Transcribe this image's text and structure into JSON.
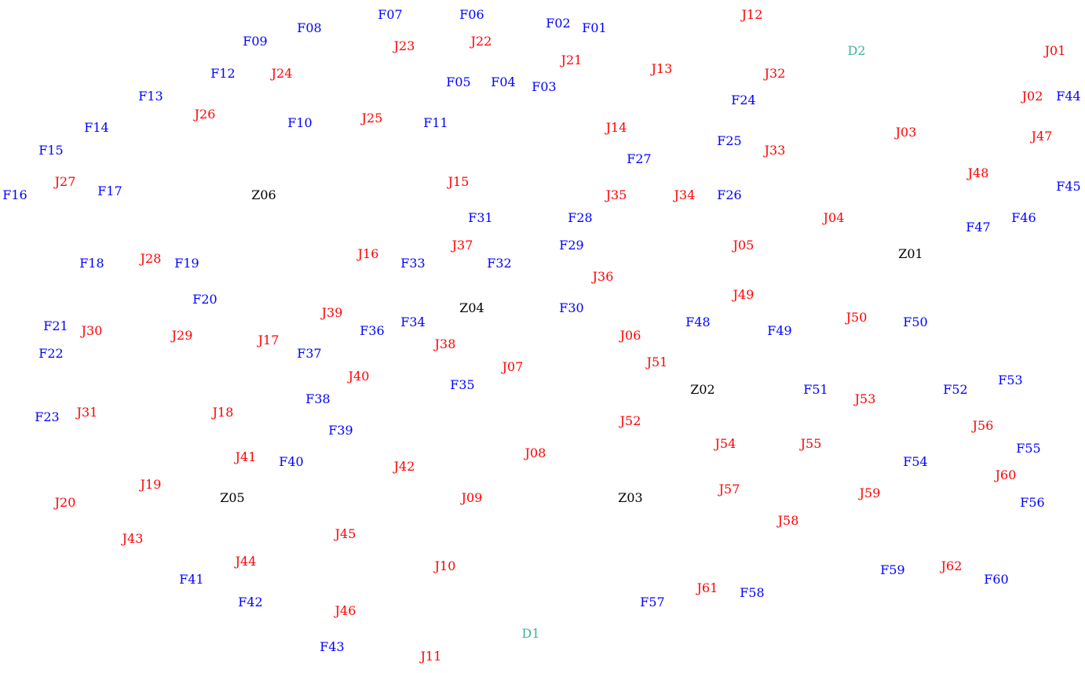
{
  "diagram": {
    "colors": {
      "F": "#0000ff",
      "J": "#ff0000",
      "Z": "#000000",
      "D": "#3cb39a"
    },
    "nodes": [
      {
        "id": "F01",
        "type": "F"
      },
      {
        "id": "F02",
        "type": "F"
      },
      {
        "id": "F03",
        "type": "F"
      },
      {
        "id": "F04",
        "type": "F"
      },
      {
        "id": "F05",
        "type": "F"
      },
      {
        "id": "F06",
        "type": "F"
      },
      {
        "id": "F07",
        "type": "F"
      },
      {
        "id": "F08",
        "type": "F"
      },
      {
        "id": "F09",
        "type": "F"
      },
      {
        "id": "F10",
        "type": "F"
      },
      {
        "id": "F11",
        "type": "F"
      },
      {
        "id": "F12",
        "type": "F"
      },
      {
        "id": "F13",
        "type": "F"
      },
      {
        "id": "F14",
        "type": "F"
      },
      {
        "id": "F15",
        "type": "F"
      },
      {
        "id": "F16",
        "type": "F"
      },
      {
        "id": "F17",
        "type": "F"
      },
      {
        "id": "F18",
        "type": "F"
      },
      {
        "id": "F19",
        "type": "F"
      },
      {
        "id": "F20",
        "type": "F"
      },
      {
        "id": "F21",
        "type": "F"
      },
      {
        "id": "F22",
        "type": "F"
      },
      {
        "id": "F23",
        "type": "F"
      },
      {
        "id": "F24",
        "type": "F"
      },
      {
        "id": "F25",
        "type": "F"
      },
      {
        "id": "F26",
        "type": "F"
      },
      {
        "id": "F27",
        "type": "F"
      },
      {
        "id": "F28",
        "type": "F"
      },
      {
        "id": "F29",
        "type": "F"
      },
      {
        "id": "F30",
        "type": "F"
      },
      {
        "id": "F31",
        "type": "F"
      },
      {
        "id": "F32",
        "type": "F"
      },
      {
        "id": "F33",
        "type": "F"
      },
      {
        "id": "F34",
        "type": "F"
      },
      {
        "id": "F35",
        "type": "F"
      },
      {
        "id": "F36",
        "type": "F"
      },
      {
        "id": "F37",
        "type": "F"
      },
      {
        "id": "F38",
        "type": "F"
      },
      {
        "id": "F39",
        "type": "F"
      },
      {
        "id": "F40",
        "type": "F"
      },
      {
        "id": "F41",
        "type": "F"
      },
      {
        "id": "F42",
        "type": "F"
      },
      {
        "id": "F43",
        "type": "F"
      },
      {
        "id": "F44",
        "type": "F"
      },
      {
        "id": "F45",
        "type": "F"
      },
      {
        "id": "F46",
        "type": "F"
      },
      {
        "id": "F47",
        "type": "F"
      },
      {
        "id": "F48",
        "type": "F"
      },
      {
        "id": "F49",
        "type": "F"
      },
      {
        "id": "F50",
        "type": "F"
      },
      {
        "id": "F51",
        "type": "F"
      },
      {
        "id": "F52",
        "type": "F"
      },
      {
        "id": "F53",
        "type": "F"
      },
      {
        "id": "F54",
        "type": "F"
      },
      {
        "id": "F55",
        "type": "F"
      },
      {
        "id": "F56",
        "type": "F"
      },
      {
        "id": "F57",
        "type": "F"
      },
      {
        "id": "F58",
        "type": "F"
      },
      {
        "id": "F59",
        "type": "F"
      },
      {
        "id": "F60",
        "type": "F"
      },
      {
        "id": "J01",
        "type": "J"
      },
      {
        "id": "J02",
        "type": "J"
      },
      {
        "id": "J03",
        "type": "J"
      },
      {
        "id": "J04",
        "type": "J"
      },
      {
        "id": "J05",
        "type": "J"
      },
      {
        "id": "J06",
        "type": "J"
      },
      {
        "id": "J07",
        "type": "J"
      },
      {
        "id": "J08",
        "type": "J"
      },
      {
        "id": "J09",
        "type": "J"
      },
      {
        "id": "J10",
        "type": "J"
      },
      {
        "id": "J11",
        "type": "J"
      },
      {
        "id": "J12",
        "type": "J"
      },
      {
        "id": "J13",
        "type": "J"
      },
      {
        "id": "J14",
        "type": "J"
      },
      {
        "id": "J15",
        "type": "J"
      },
      {
        "id": "J16",
        "type": "J"
      },
      {
        "id": "J17",
        "type": "J"
      },
      {
        "id": "J18",
        "type": "J"
      },
      {
        "id": "J19",
        "type": "J"
      },
      {
        "id": "J20",
        "type": "J"
      },
      {
        "id": "J21",
        "type": "J"
      },
      {
        "id": "J22",
        "type": "J"
      },
      {
        "id": "J23",
        "type": "J"
      },
      {
        "id": "J24",
        "type": "J"
      },
      {
        "id": "J25",
        "type": "J"
      },
      {
        "id": "J26",
        "type": "J"
      },
      {
        "id": "J27",
        "type": "J"
      },
      {
        "id": "J28",
        "type": "J"
      },
      {
        "id": "J29",
        "type": "J"
      },
      {
        "id": "J30",
        "type": "J"
      },
      {
        "id": "J31",
        "type": "J"
      },
      {
        "id": "J32",
        "type": "J"
      },
      {
        "id": "J33",
        "type": "J"
      },
      {
        "id": "J34",
        "type": "J"
      },
      {
        "id": "J35",
        "type": "J"
      },
      {
        "id": "J36",
        "type": "J"
      },
      {
        "id": "J37",
        "type": "J"
      },
      {
        "id": "J38",
        "type": "J"
      },
      {
        "id": "J39",
        "type": "J"
      },
      {
        "id": "J40",
        "type": "J"
      },
      {
        "id": "J41",
        "type": "J"
      },
      {
        "id": "J42",
        "type": "J"
      },
      {
        "id": "J43",
        "type": "J"
      },
      {
        "id": "J44",
        "type": "J"
      },
      {
        "id": "J45",
        "type": "J"
      },
      {
        "id": "J46",
        "type": "J"
      },
      {
        "id": "J47",
        "type": "J"
      },
      {
        "id": "J48",
        "type": "J"
      },
      {
        "id": "J49",
        "type": "J"
      },
      {
        "id": "J50",
        "type": "J"
      },
      {
        "id": "J51",
        "type": "J"
      },
      {
        "id": "J52",
        "type": "J"
      },
      {
        "id": "J53",
        "type": "J"
      },
      {
        "id": "J54",
        "type": "J"
      },
      {
        "id": "J55",
        "type": "J"
      },
      {
        "id": "J56",
        "type": "J"
      },
      {
        "id": "J57",
        "type": "J"
      },
      {
        "id": "J58",
        "type": "J"
      },
      {
        "id": "J59",
        "type": "J"
      },
      {
        "id": "J60",
        "type": "J"
      },
      {
        "id": "J61",
        "type": "J"
      },
      {
        "id": "J62",
        "type": "J"
      },
      {
        "id": "Z01",
        "type": "Z"
      },
      {
        "id": "Z02",
        "type": "Z"
      },
      {
        "id": "Z03",
        "type": "Z"
      },
      {
        "id": "Z04",
        "type": "Z"
      },
      {
        "id": "Z05",
        "type": "Z"
      },
      {
        "id": "Z06",
        "type": "Z"
      },
      {
        "id": "D1",
        "type": "D"
      },
      {
        "id": "D2",
        "type": "D"
      }
    ]
  }
}
